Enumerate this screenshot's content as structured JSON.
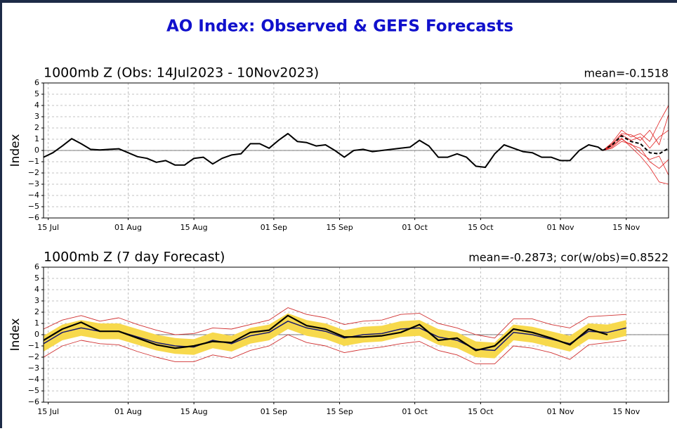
{
  "title": "AO Index: Observed & GEFS Forecasts",
  "chart_data": [
    {
      "type": "line",
      "title": "1000mb Z (Obs: 14Jul2023 - 10Nov2023)",
      "annotation": "mean=-0.1518",
      "y_label": "Index",
      "xlim": [
        "14 Jul",
        "24 Nov"
      ],
      "ylim": [
        -6,
        6
      ],
      "grid": true,
      "xticks": [
        "15 Jul",
        "01 Aug",
        "15 Aug",
        "01 Sep",
        "15 Sep",
        "01 Oct",
        "15 Oct",
        "01 Nov",
        "15 Nov"
      ],
      "yticks": [
        {
          "value": -6,
          "label": "−6"
        },
        {
          "value": -5,
          "label": "−5"
        },
        {
          "value": -4,
          "label": "−4"
        },
        {
          "value": -3,
          "label": "−3"
        },
        {
          "value": -2,
          "label": "−2"
        },
        {
          "value": -1,
          "label": "−1"
        },
        0,
        1,
        2,
        3,
        4,
        5,
        6
      ],
      "series": [
        {
          "color": "#000000",
          "width": 2,
          "dashed": false,
          "x": [
            "14 Jul",
            "16 Jul",
            "18 Jul",
            "20 Jul",
            "22 Jul",
            "24 Jul",
            "26 Jul",
            "28 Jul",
            "30 Jul",
            "01 Aug",
            "03 Aug",
            "05 Aug",
            "07 Aug",
            "09 Aug",
            "11 Aug",
            "13 Aug",
            "15 Aug",
            "17 Aug",
            "19 Aug",
            "21 Aug",
            "23 Aug",
            "25 Aug",
            "27 Aug",
            "29 Aug",
            "31 Aug",
            "02 Sep",
            "04 Sep",
            "06 Sep",
            "08 Sep",
            "10 Sep",
            "12 Sep",
            "14 Sep",
            "16 Sep",
            "18 Sep",
            "20 Sep",
            "22 Sep",
            "24 Sep",
            "26 Sep",
            "28 Sep",
            "30 Sep",
            "02 Oct",
            "04 Oct",
            "06 Oct",
            "08 Oct",
            "10 Oct",
            "12 Oct",
            "14 Oct",
            "16 Oct",
            "18 Oct",
            "20 Oct",
            "22 Oct",
            "24 Oct",
            "26 Oct",
            "28 Oct",
            "30 Oct",
            "01 Nov",
            "03 Nov",
            "05 Nov",
            "07 Nov",
            "09 Nov",
            "10 Nov"
          ],
          "values": [
            -0.6,
            -0.2,
            0.4,
            1.05,
            0.6,
            0.1,
            0.05,
            0.1,
            0.15,
            -0.2,
            -0.55,
            -0.7,
            -1.05,
            -0.9,
            -1.3,
            -1.3,
            -0.7,
            -0.6,
            -1.2,
            -0.7,
            -0.4,
            -0.3,
            0.6,
            0.6,
            0.2,
            0.9,
            1.5,
            0.8,
            0.7,
            0.4,
            0.5,
            0.0,
            -0.6,
            0.0,
            0.1,
            -0.1,
            0.0,
            0.1,
            0.2,
            0.3,
            0.9,
            0.4,
            -0.6,
            -0.6,
            -0.3,
            -0.6,
            -1.4,
            -1.5,
            -0.3,
            0.5,
            0.2,
            -0.1,
            -0.2,
            -0.6,
            -0.6,
            -0.9,
            -0.9,
            0.0,
            0.5,
            0.3,
            0.0
          ]
        },
        {
          "color": "#e02020",
          "width": 0.8,
          "dashed": false,
          "x": [
            "10 Nov",
            "12 Nov",
            "14 Nov",
            "16 Nov",
            "18 Nov",
            "20 Nov",
            "22 Nov",
            "24 Nov"
          ],
          "values": [
            0,
            0.7,
            1.8,
            1.2,
            1.5,
            0.8,
            2.5,
            4.0
          ]
        },
        {
          "color": "#e02020",
          "width": 0.8,
          "dashed": false,
          "x": [
            "10 Nov",
            "12 Nov",
            "14 Nov",
            "16 Nov",
            "18 Nov",
            "20 Nov",
            "22 Nov",
            "24 Nov"
          ],
          "values": [
            0,
            0.4,
            1.1,
            0.3,
            -0.5,
            -1.5,
            -2.8,
            -3.0
          ]
        },
        {
          "color": "#e02020",
          "width": 0.8,
          "dashed": false,
          "x": [
            "10 Nov",
            "12 Nov",
            "14 Nov",
            "16 Nov",
            "18 Nov",
            "20 Nov",
            "22 Nov",
            "24 Nov"
          ],
          "values": [
            0,
            0.6,
            1.5,
            1.4,
            0.9,
            1.8,
            0.5,
            3.2
          ]
        },
        {
          "color": "#e02020",
          "width": 0.8,
          "dashed": false,
          "x": [
            "10 Nov",
            "12 Nov",
            "14 Nov",
            "16 Nov",
            "18 Nov",
            "20 Nov",
            "22 Nov",
            "24 Nov"
          ],
          "values": [
            0,
            0.3,
            1.0,
            0.5,
            0.2,
            -1.0,
            -1.6,
            -0.8
          ]
        },
        {
          "color": "#e02020",
          "width": 0.8,
          "dashed": false,
          "x": [
            "10 Nov",
            "12 Nov",
            "14 Nov",
            "16 Nov",
            "18 Nov",
            "20 Nov",
            "22 Nov",
            "24 Nov"
          ],
          "values": [
            0,
            0.5,
            1.4,
            0.9,
            1.2,
            0.2,
            1.2,
            1.8
          ]
        },
        {
          "color": "#e02020",
          "width": 0.8,
          "dashed": false,
          "x": [
            "10 Nov",
            "12 Nov",
            "14 Nov",
            "16 Nov",
            "18 Nov",
            "20 Nov",
            "22 Nov",
            "24 Nov"
          ],
          "values": [
            0,
            0.2,
            0.8,
            0.6,
            -0.2,
            -0.8,
            -0.5,
            -2.2
          ]
        },
        {
          "color": "#000000",
          "width": 2,
          "dashed": true,
          "x": [
            "10 Nov",
            "12 Nov",
            "14 Nov",
            "16 Nov",
            "18 Nov",
            "20 Nov",
            "22 Nov",
            "24 Nov"
          ],
          "values": [
            0,
            0.5,
            1.3,
            0.8,
            0.6,
            -0.2,
            -0.3,
            0.2
          ]
        }
      ]
    },
    {
      "type": "line",
      "title": "1000mb Z (7 day Forecast)",
      "annotation": "mean=-0.2873; cor(w/obs)=0.8522",
      "y_label": "Index",
      "xlim": [
        "14 Jul",
        "24 Nov"
      ],
      "ylim": [
        -6,
        6
      ],
      "grid": true,
      "xticks": [
        "15 Jul",
        "01 Aug",
        "15 Aug",
        "01 Sep",
        "15 Sep",
        "01 Oct",
        "15 Oct",
        "01 Nov",
        "15 Nov"
      ],
      "yticks": [
        {
          "value": -6,
          "label": "−6"
        },
        {
          "value": -5,
          "label": "−5"
        },
        {
          "value": -4,
          "label": "−4"
        },
        {
          "value": -3,
          "label": "−3"
        },
        {
          "value": -2,
          "label": "−2"
        },
        {
          "value": -1,
          "label": "−1"
        },
        0,
        1,
        2,
        3,
        4,
        5,
        6
      ],
      "x": [
        "14 Jul",
        "18 Jul",
        "22 Jul",
        "26 Jul",
        "30 Jul",
        "03 Aug",
        "07 Aug",
        "11 Aug",
        "15 Aug",
        "19 Aug",
        "23 Aug",
        "27 Aug",
        "31 Aug",
        "04 Sep",
        "08 Sep",
        "12 Sep",
        "16 Sep",
        "20 Sep",
        "24 Sep",
        "28 Sep",
        "02 Oct",
        "06 Oct",
        "10 Oct",
        "14 Oct",
        "18 Oct",
        "22 Oct",
        "26 Oct",
        "30 Oct",
        "03 Nov",
        "07 Nov",
        "11 Nov",
        "15 Nov"
      ],
      "band": {
        "color": "#f7d94c",
        "upper": [
          -0.1,
          0.9,
          1.3,
          1.0,
          1.0,
          0.5,
          0.0,
          -0.3,
          -0.4,
          0.2,
          -0.1,
          0.6,
          0.9,
          1.9,
          1.3,
          1.0,
          0.4,
          0.7,
          0.8,
          1.2,
          1.3,
          0.5,
          0.2,
          -0.6,
          -0.7,
          0.9,
          0.7,
          0.3,
          -0.1,
          1.0,
          0.9,
          1.3
        ],
        "lower": [
          -1.5,
          -0.5,
          -0.1,
          -0.4,
          -0.4,
          -0.9,
          -1.4,
          -1.7,
          -1.8,
          -1.2,
          -1.5,
          -0.8,
          -0.5,
          0.5,
          -0.1,
          -0.4,
          -1.0,
          -0.7,
          -0.6,
          -0.2,
          -0.1,
          -0.9,
          -1.2,
          -2.0,
          -2.1,
          -0.5,
          -0.7,
          -1.1,
          -1.5,
          -0.4,
          -0.5,
          -0.1
        ]
      },
      "series": [
        {
          "color": "#d03030",
          "width": 0.9,
          "dashed": false,
          "values": [
            0.5,
            1.3,
            1.7,
            1.2,
            1.5,
            0.9,
            0.4,
            0.0,
            0.1,
            0.6,
            0.5,
            0.9,
            1.3,
            2.4,
            1.8,
            1.5,
            0.9,
            1.2,
            1.3,
            1.8,
            1.9,
            1.0,
            0.6,
            0.0,
            -0.3,
            1.4,
            1.4,
            0.9,
            0.6,
            1.6,
            1.7,
            1.8
          ]
        },
        {
          "color": "#d03030",
          "width": 0.9,
          "dashed": false,
          "values": [
            -2.0,
            -1.0,
            -0.5,
            -0.8,
            -0.9,
            -1.5,
            -2.0,
            -2.4,
            -2.4,
            -1.8,
            -2.1,
            -1.4,
            -1.0,
            0.0,
            -0.7,
            -1.0,
            -1.6,
            -1.3,
            -1.1,
            -0.8,
            -0.6,
            -1.4,
            -1.8,
            -2.6,
            -2.6,
            -1.0,
            -1.2,
            -1.6,
            -2.2,
            -0.9,
            -0.7,
            -0.5
          ]
        },
        {
          "color": "#1a1a6e",
          "width": 1.5,
          "dashed": false,
          "values": [
            -0.8,
            0.2,
            0.6,
            0.3,
            0.3,
            -0.2,
            -0.7,
            -1.0,
            -1.1,
            -0.5,
            -0.8,
            -0.1,
            0.2,
            1.2,
            0.6,
            0.3,
            -0.3,
            0.0,
            0.1,
            0.5,
            0.6,
            -0.2,
            -0.5,
            -1.3,
            -1.4,
            0.2,
            0.0,
            -0.4,
            -0.8,
            0.3,
            0.2,
            0.6
          ]
        },
        {
          "color": "#000000",
          "width": 2.2,
          "dashed": false,
          "values": [
            -0.5,
            0.5,
            1.1,
            0.3,
            0.3,
            -0.3,
            -0.9,
            -1.2,
            -1.0,
            -0.6,
            -0.7,
            0.2,
            0.4,
            1.7,
            0.8,
            0.5,
            -0.2,
            -0.2,
            -0.1,
            0.2,
            0.9,
            -0.5,
            -0.3,
            -1.4,
            -1.0,
            0.5,
            0.2,
            -0.3,
            -0.9,
            0.5,
            0.0,
            null
          ]
        }
      ]
    }
  ]
}
